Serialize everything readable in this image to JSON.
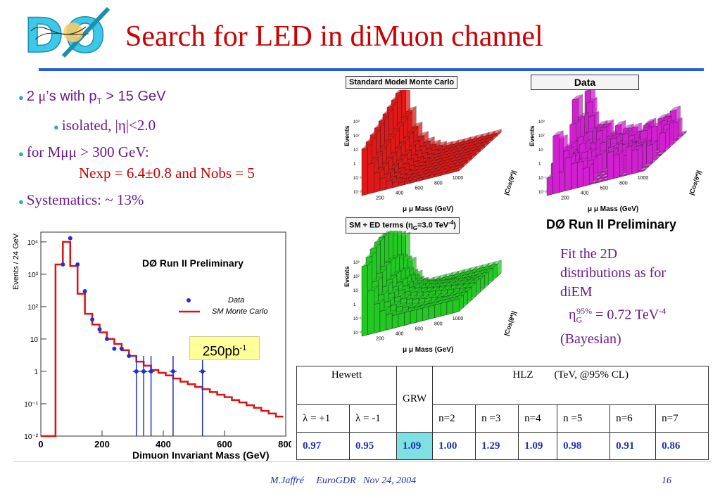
{
  "slide": {
    "title": "Search for LED in diMuon channel",
    "logo_text": "DØ",
    "footer_author": "M.Jaffré",
    "footer_event": "EuroGDR",
    "footer_date": "Nov 24, 2004",
    "page_number": "16"
  },
  "bullets": {
    "b1_pre": "2 ",
    "b1_mu": "μ",
    "b1_mid": "’s with p",
    "b1_sub": "T",
    "b1_post": " > 15 GeV",
    "b2": "isolated, |η|<2.0",
    "b3": "for Mμμ > 300 GeV:",
    "b3_nexp": "Nexp = 6.4±0.8 and Nobs = 5",
    "b4": "Systematics: ~ 13%"
  },
  "panels": {
    "sm_mc": "Standard Model Monte Carlo",
    "data": "Data",
    "sm_ed_pre": "SM + ED terms (η",
    "sm_ed_sub": "G",
    "sm_ed_post": "=3.0 TeV",
    "sm_ed_sup": "-4",
    "sm_ed_close": ")",
    "prelim": "DØ Run II Preliminary",
    "z_label": "Events",
    "x_label": "μ μ Mass (GeV)",
    "y_label": "|Cos(θ*)|",
    "x_ticks": [
      "200",
      "400",
      "600",
      "800",
      "1000"
    ],
    "z_ticks": [
      "10⁻²",
      "10⁻¹",
      "1",
      "10",
      "10²",
      "10³"
    ]
  },
  "fit_text": {
    "line1": "Fit the 2D",
    "line2": "distributions as for",
    "line3": "diEM",
    "eta": "η",
    "eta_sub": "G",
    "eta_sup": "95%",
    "eta_val": " = 0.72 TeV",
    "eta_val_sup": "-4",
    "line5": "(Bayesian)"
  },
  "luminosity": {
    "text": "250pb",
    "sup": "-1"
  },
  "chart_data": {
    "type": "line",
    "title": "DØ Run II Preliminary",
    "xlabel": "Dimuon Invariant Mass (GeV)",
    "ylabel": "Events / 24 GeV",
    "xlim": [
      0,
      800
    ],
    "ylim": [
      0.01,
      20000
    ],
    "log_y": true,
    "x_ticks": [
      "0",
      "200",
      "400",
      "600",
      "800"
    ],
    "y_ticks": [
      "10⁻²",
      "10⁻¹",
      "1",
      "10",
      "10²",
      "10³",
      "10⁴"
    ],
    "legend": [
      "Data",
      "SM Monte Carlo"
    ],
    "legend_placement": "right",
    "series": [
      {
        "name": "SM Monte Carlo",
        "color": "#e01010",
        "bin_edges": [
          0,
          48,
          72,
          96,
          120,
          144,
          168,
          192,
          216,
          240,
          264,
          288,
          312,
          336,
          360,
          384,
          408,
          432,
          456,
          480,
          504,
          528,
          552,
          576,
          600,
          624,
          648,
          672,
          696,
          720,
          744,
          768,
          792
        ],
        "values": [
          0.01,
          2000,
          10000,
          1800,
          250,
          60,
          28,
          16,
          10,
          7,
          4.5,
          3,
          2,
          1.5,
          1.1,
          0.9,
          0.75,
          0.6,
          0.48,
          0.4,
          0.33,
          0.28,
          0.23,
          0.19,
          0.16,
          0.13,
          0.11,
          0.09,
          0.075,
          0.06,
          0.05,
          0.04
        ]
      },
      {
        "name": "Data",
        "color": "#1f2fd8",
        "x": [
          72,
          96,
          120,
          144,
          168,
          192,
          216,
          240,
          264,
          288,
          312,
          336,
          360,
          432,
          528
        ],
        "y": [
          2000,
          13000,
          2000,
          300,
          40,
          20,
          10,
          5,
          5,
          3,
          1,
          1,
          1,
          1,
          1
        ],
        "y_err_low": [
          0,
          0,
          0,
          0,
          0,
          0,
          0,
          0,
          0,
          0,
          0.99,
          0.99,
          0.99,
          0.99,
          0.99
        ],
        "y_err_high": [
          0,
          0,
          0,
          0,
          0,
          0,
          0,
          0,
          0,
          0,
          2,
          2,
          2,
          2,
          2
        ]
      }
    ]
  },
  "table": {
    "header_hewett": "Hewett",
    "header_grw": "GRW",
    "header_hlz": "HLZ        (TeV, @95% CL)",
    "sub": [
      "λ = +1",
      "λ = -1",
      "",
      "n=2",
      "n =3",
      "n=4",
      "n =5",
      "n=6",
      "n=7"
    ],
    "values": [
      "0.97",
      "0.95",
      "1.09",
      "1.00",
      "1.29",
      "1.09",
      "0.98",
      "0.91",
      "0.86"
    ]
  }
}
